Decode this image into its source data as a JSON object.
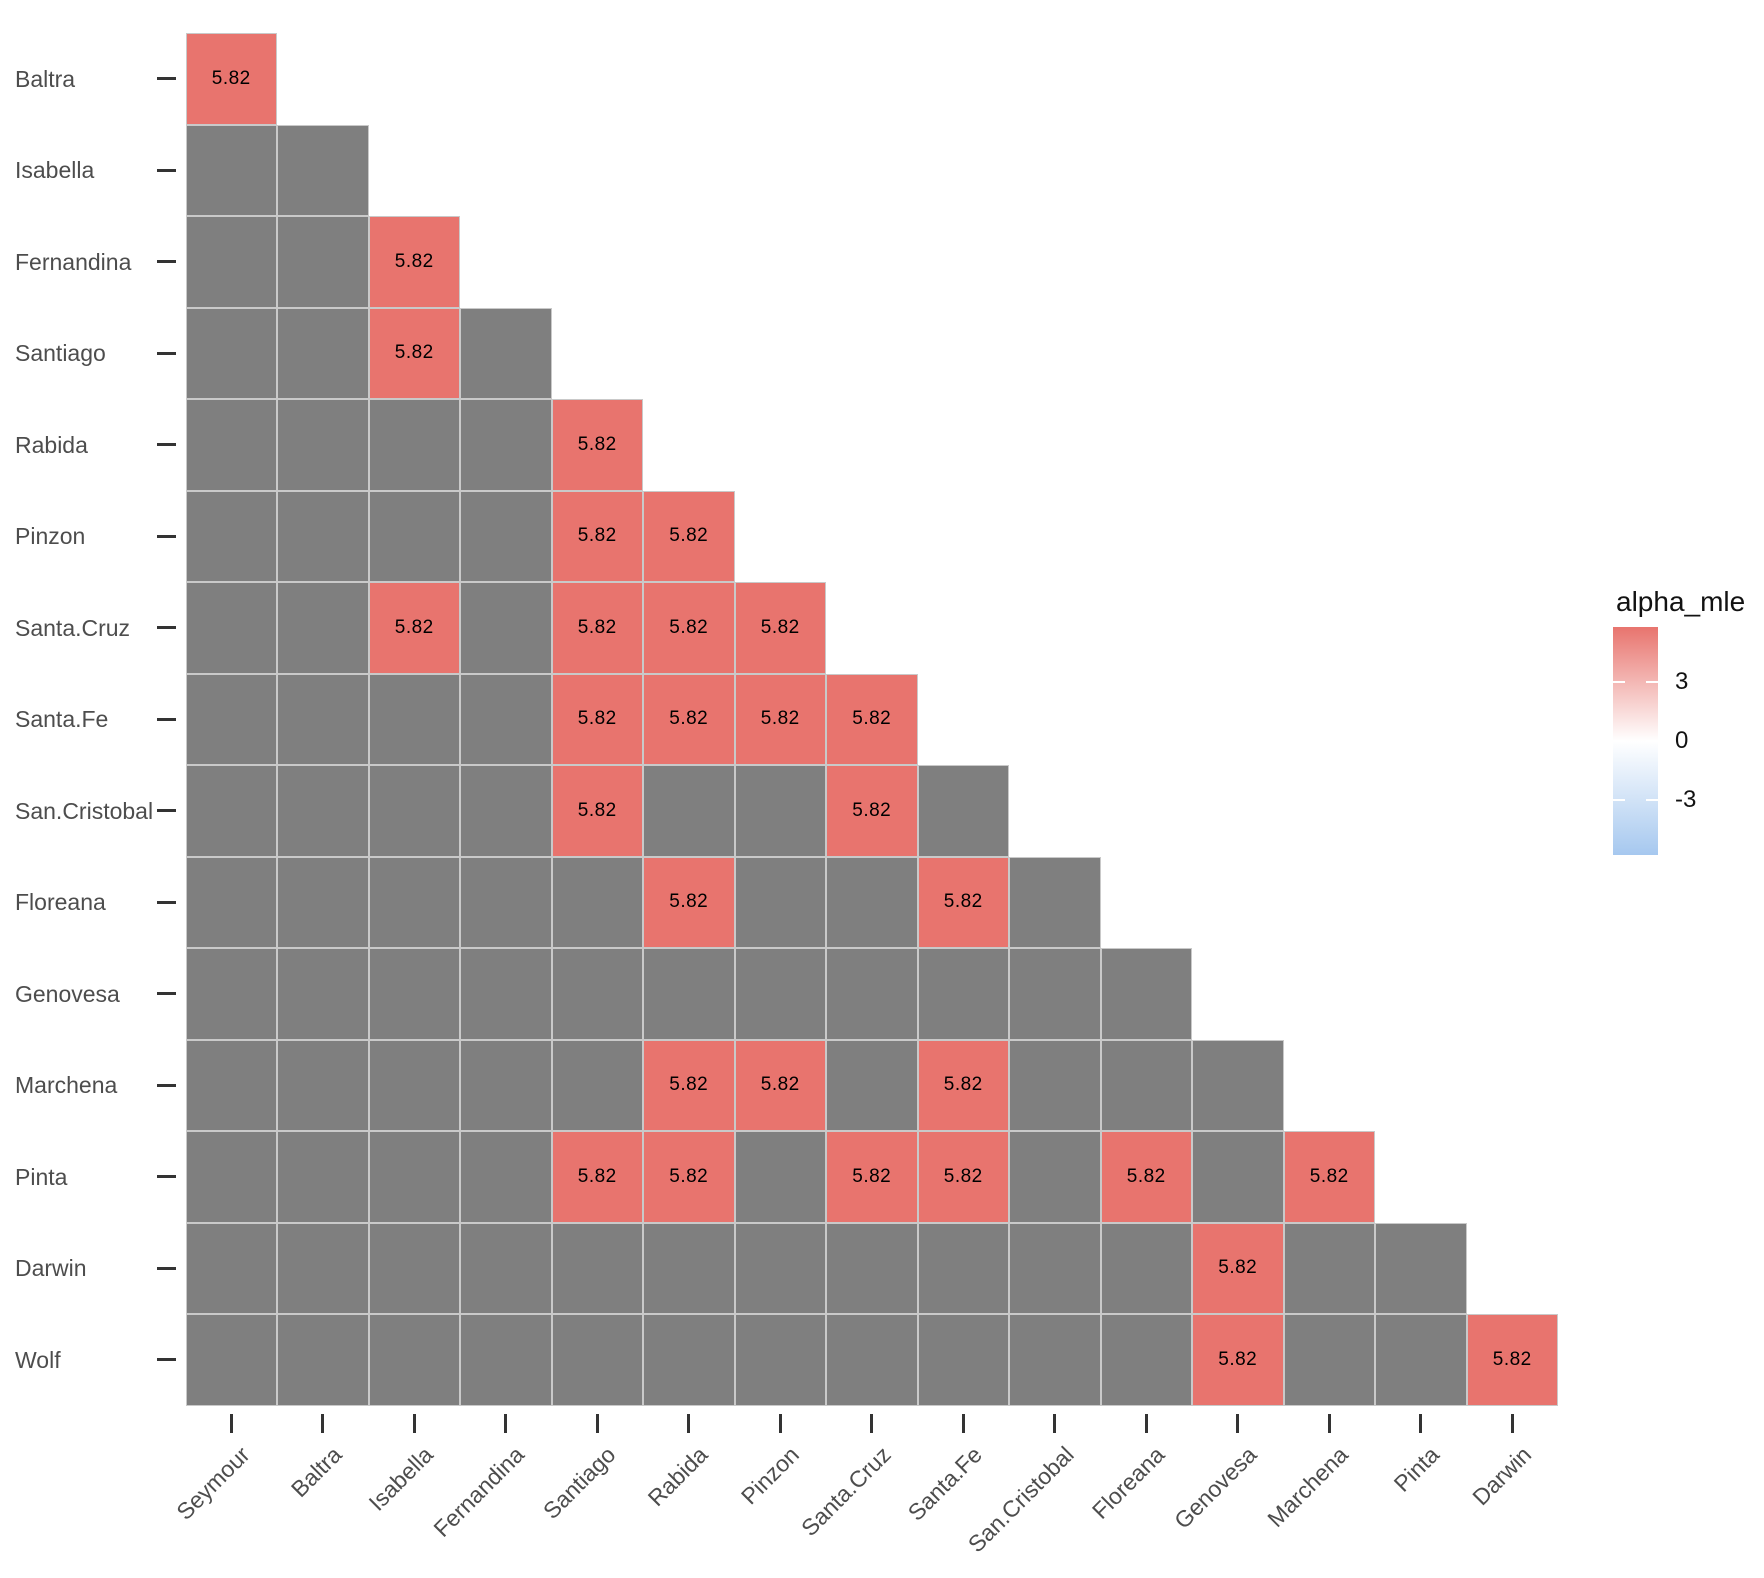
{
  "chart_data": {
    "type": "heatmap",
    "title": "",
    "description": "Lower-triangular pairwise heatmap of Galapagos islands; colored cells labeled 5.82, others missing (gray)",
    "x_labels": [
      "Seymour",
      "Baltra",
      "Isabella",
      "Fernandina",
      "Santiago",
      "Rabida",
      "Pinzon",
      "Santa.Cruz",
      "Santa.Fe",
      "San.Cristobal",
      "Floreana",
      "Genovesa",
      "Marchena",
      "Pinta",
      "Darwin"
    ],
    "y_labels": [
      "Baltra",
      "Isabella",
      "Fernandina",
      "Santiago",
      "Rabida",
      "Pinzon",
      "Santa.Cruz",
      "Santa.Fe",
      "San.Cristobal",
      "Floreana",
      "Genovesa",
      "Marchena",
      "Pinta",
      "Darwin",
      "Wolf"
    ],
    "rows": [
      {
        "label": "Baltra",
        "cells": [
          5.82
        ]
      },
      {
        "label": "Isabella",
        "cells": [
          null,
          null
        ]
      },
      {
        "label": "Fernandina",
        "cells": [
          null,
          null,
          5.82
        ]
      },
      {
        "label": "Santiago",
        "cells": [
          null,
          null,
          5.82,
          null
        ]
      },
      {
        "label": "Rabida",
        "cells": [
          null,
          null,
          null,
          null,
          5.82
        ]
      },
      {
        "label": "Pinzon",
        "cells": [
          null,
          null,
          null,
          null,
          5.82,
          5.82
        ]
      },
      {
        "label": "Santa.Cruz",
        "cells": [
          null,
          null,
          5.82,
          null,
          5.82,
          5.82,
          5.82
        ]
      },
      {
        "label": "Santa.Fe",
        "cells": [
          null,
          null,
          null,
          null,
          5.82,
          5.82,
          5.82,
          5.82
        ]
      },
      {
        "label": "San.Cristobal",
        "cells": [
          null,
          null,
          null,
          null,
          5.82,
          null,
          null,
          5.82,
          null
        ]
      },
      {
        "label": "Floreana",
        "cells": [
          null,
          null,
          null,
          null,
          null,
          5.82,
          null,
          null,
          5.82,
          null
        ]
      },
      {
        "label": "Genovesa",
        "cells": [
          null,
          null,
          null,
          null,
          null,
          null,
          null,
          null,
          null,
          null,
          null
        ]
      },
      {
        "label": "Marchena",
        "cells": [
          null,
          null,
          null,
          null,
          null,
          5.82,
          5.82,
          null,
          5.82,
          null,
          null,
          null
        ]
      },
      {
        "label": "Pinta",
        "cells": [
          null,
          null,
          null,
          null,
          5.82,
          5.82,
          null,
          5.82,
          5.82,
          null,
          5.82,
          null,
          5.82
        ]
      },
      {
        "label": "Darwin",
        "cells": [
          null,
          null,
          null,
          null,
          null,
          null,
          null,
          null,
          null,
          null,
          null,
          5.82,
          null,
          null
        ]
      },
      {
        "label": "Wolf",
        "cells": [
          null,
          null,
          null,
          null,
          null,
          null,
          null,
          null,
          null,
          null,
          null,
          5.82,
          null,
          null,
          5.82
        ]
      }
    ],
    "value_label": "5.82",
    "value_decimal_places": 2,
    "legend": {
      "title": "alpha_mle",
      "tick_labels": [
        "3",
        "0",
        "-3"
      ],
      "tick_values": [
        3,
        0,
        -3
      ],
      "limits": [
        -5.82,
        5.82
      ],
      "position": "right"
    },
    "colors": {
      "high": "#E8746E",
      "mid": "#FFFFFF",
      "low": "#A6C8EF",
      "missing": "#7F7F7F",
      "grid": "#C9C9C9",
      "axis_text": "#4D4D4D",
      "tick_mark": "#333333",
      "value_text": "#000000"
    },
    "layout_hints": {
      "triangle": "lower",
      "x_label_angle_deg": 45,
      "grid_visible": true
    }
  }
}
